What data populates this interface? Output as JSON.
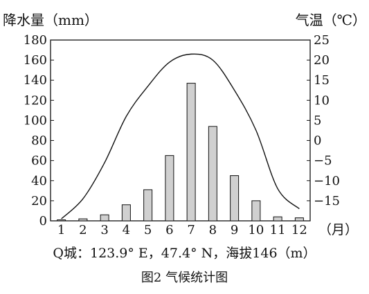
{
  "chart_data": {
    "type": "bar+line",
    "title": "图2 气候统计图",
    "location": "Q城：123.9° E，47.4° N，海拔146（m）",
    "left_axis": {
      "label": "降水量（mm）",
      "ticks": [
        "0",
        "20",
        "40",
        "60",
        "80",
        "100",
        "120",
        "140",
        "160",
        "180"
      ],
      "ylim": [
        0,
        180
      ]
    },
    "right_axis": {
      "label": "气温（℃）",
      "ticks": [
        "−15",
        "−10",
        "−5",
        "0",
        "5",
        "10",
        "15",
        "20",
        "25"
      ],
      "ylim": [
        -20,
        25
      ]
    },
    "x_axis": {
      "categories": [
        "1",
        "2",
        "3",
        "4",
        "5",
        "6",
        "7",
        "8",
        "9",
        "10",
        "11",
        "12"
      ],
      "unit": "（月）"
    },
    "series": [
      {
        "type": "bar",
        "axis": "left",
        "values": [
          1,
          2,
          6,
          16,
          31,
          65,
          137,
          94,
          45,
          20,
          4,
          3
        ]
      },
      {
        "type": "line",
        "axis": "right",
        "values": [
          -19.5,
          -14.5,
          -5.5,
          6,
          13.5,
          19.5,
          21.5,
          20,
          12.5,
          2.5,
          -12,
          -17
        ]
      }
    ],
    "colors": {
      "bar_fill": "#d0d0d0",
      "stroke": "#111111"
    },
    "grid": false
  }
}
